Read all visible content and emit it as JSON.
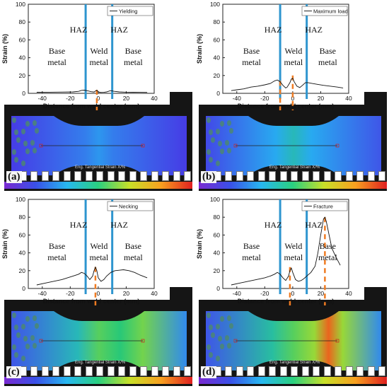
{
  "panels": [
    {
      "id": "a",
      "letter": "(a)",
      "legend": "Yielding",
      "chart_data": {
        "type": "line",
        "xlabel": "Distance from weld center (mm)",
        "ylabel": "Strain (%)",
        "xlim": [
          -50,
          40
        ],
        "ylim": [
          0,
          100
        ],
        "xticks": [
          -40,
          -20,
          0,
          20,
          40
        ],
        "yticks": [
          0,
          20,
          40,
          60,
          80,
          100
        ],
        "series": [
          {
            "name": "Yielding",
            "x": [
              -44,
              -35,
              -25,
              -18,
              -14,
              -12,
              -10,
              -7,
              -5,
              -3,
              -2,
              -1,
              0,
              1,
              2,
              4,
              6,
              8,
              9,
              11,
              15,
              20,
              25,
              30,
              35
            ],
            "y": [
              1.2,
              1.3,
              1.4,
              1.6,
              2.2,
              3.3,
              3.6,
              2.6,
              1.8,
              1.5,
              2.5,
              3.5,
              1.8,
              1.2,
              1.0,
              1.1,
              1.6,
              2.6,
              3.0,
              2.3,
              1.6,
              1.3,
              1.2,
              1.1,
              1.0
            ]
          }
        ],
        "haz_lines_x": [
          -9,
          10
        ],
        "dashed_markers": [
          {
            "x": -1,
            "y0": 0,
            "y1": 4
          }
        ],
        "annotations": [
          "HAZ",
          "HAZ",
          "Base metal",
          "Weld metal",
          "Base metal"
        ]
      }
    },
    {
      "id": "b",
      "letter": "(b)",
      "legend": "Maximum load",
      "chart_data": {
        "type": "line",
        "xlabel": "Distance from weld center (mm)",
        "ylabel": "Strain (%)",
        "xlim": [
          -50,
          40
        ],
        "ylim": [
          0,
          100
        ],
        "xticks": [
          -40,
          -20,
          0,
          20,
          40
        ],
        "yticks": [
          0,
          20,
          40,
          60,
          80,
          100
        ],
        "series": [
          {
            "name": "Maximum load",
            "x": [
              -44,
              -40,
              -35,
              -30,
              -25,
              -20,
              -16,
              -13,
              -11,
              -9,
              -7,
              -5,
              -4,
              -2,
              -1,
              0,
              1,
              3,
              5,
              7,
              9,
              11,
              14,
              18,
              22,
              27,
              32,
              36
            ],
            "y": [
              3,
              4,
              5,
              7,
              8,
              9.5,
              11,
              14,
              15,
              13,
              9,
              6,
              7,
              12,
              16,
              17,
              13,
              8,
              6.5,
              9,
              12,
              12,
              11,
              10,
              9,
              8,
              7,
              6
            ]
          }
        ],
        "haz_lines_x": [
          -9,
          10
        ],
        "dashed_markers": [
          {
            "x": -9,
            "y0": 0,
            "y1": 14
          },
          {
            "x": 0,
            "y0": 0,
            "y1": 20
          }
        ],
        "annotations": [
          "HAZ",
          "HAZ",
          "Base metal",
          "Weld metal",
          "Base metal"
        ]
      }
    },
    {
      "id": "c",
      "letter": "(c)",
      "legend": "Necking",
      "chart_data": {
        "type": "line",
        "xlabel": "Distance from weld center (mm)",
        "ylabel": "Strain (%)",
        "xlim": [
          -50,
          40
        ],
        "ylim": [
          0,
          100
        ],
        "xticks": [
          -40,
          -20,
          0,
          20,
          40
        ],
        "yticks": [
          0,
          20,
          40,
          60,
          80,
          100
        ],
        "series": [
          {
            "name": "Necking",
            "x": [
              -44,
              -38,
              -32,
              -26,
              -22,
              -18,
              -14,
              -12,
              -10,
              -8,
              -6,
              -4,
              -3,
              -2,
              -1,
              0,
              2,
              4,
              6,
              9,
              12,
              15,
              18,
              22,
              26,
              30,
              35
            ],
            "y": [
              4,
              6,
              8,
              10,
              12,
              14,
              16,
              18,
              17,
              14,
              10,
              14,
              20,
              24,
              20,
              12,
              8,
              10,
              14,
              18,
              20,
              20.5,
              21,
              20,
              18,
              15,
              12
            ]
          }
        ],
        "haz_lines_x": [
          -9,
          10
        ],
        "dashed_markers": [
          {
            "x": -2,
            "y0": 0,
            "y1": 24
          }
        ],
        "annotations": [
          "HAZ",
          "HAZ",
          "Base metal",
          "Weld metal",
          "Base metal"
        ]
      }
    },
    {
      "id": "d",
      "letter": "(d)",
      "legend": "Fracture",
      "chart_data": {
        "type": "line",
        "xlabel": "Distance from weld center (mm)",
        "ylabel": "Strain (%)",
        "xlim": [
          -50,
          40
        ],
        "ylim": [
          0,
          100
        ],
        "xticks": [
          -40,
          -20,
          0,
          20,
          40
        ],
        "yticks": [
          0,
          20,
          40,
          60,
          80,
          100
        ],
        "series": [
          {
            "name": "Fracture",
            "x": [
              -44,
              -38,
              -32,
              -26,
              -20,
              -16,
              -13,
              -11,
              -9,
              -7,
              -5,
              -3,
              -2,
              -1,
              0,
              2,
              4,
              6,
              8,
              10,
              13,
              16,
              18,
              20,
              22,
              23,
              24,
              26,
              28,
              31,
              34
            ],
            "y": [
              4,
              6,
              8,
              10,
              12,
              14,
              16,
              18,
              16,
              12,
              9,
              14,
              20,
              23,
              18,
              10,
              8,
              9,
              11,
              14,
              18,
              25,
              40,
              60,
              78,
              80,
              75,
              60,
              45,
              35,
              26
            ]
          }
        ],
        "haz_lines_x": [
          -9,
          10
        ],
        "dashed_markers": [
          {
            "x": -2,
            "y0": 0,
            "y1": 24
          },
          {
            "x": 23,
            "y0": 0,
            "y1": 80
          }
        ],
        "annotations": [
          "HAZ",
          "HAZ",
          "Base metal",
          "Weld metal",
          "Base metal"
        ]
      }
    }
  ],
  "colorbar": {
    "title": "Eng. Tangential Strain X/%"
  },
  "colors": {
    "haz_line": "#2e95cf",
    "dashed": "#ef7b22",
    "curve": "#111111",
    "axis": "#222222"
  }
}
